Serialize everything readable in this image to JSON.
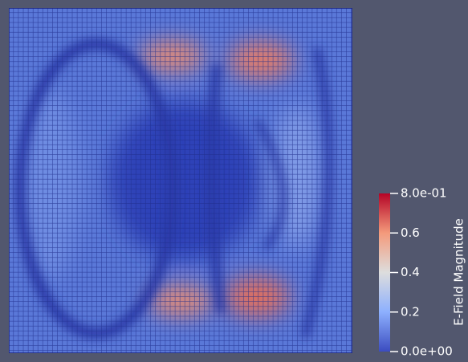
{
  "colorbar": {
    "title": "E-Field Magnitude",
    "ticks": [
      "8.0e-01",
      "0.6",
      "0.4",
      "0.2",
      "0.0e+00"
    ]
  }
}
